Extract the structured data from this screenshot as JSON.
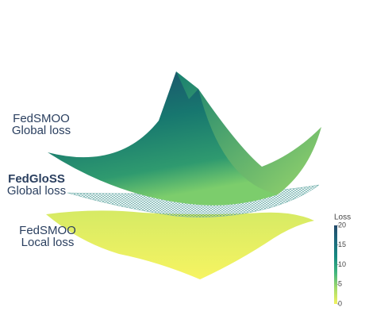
{
  "chart_data": {
    "type": "surface",
    "annotations": [
      {
        "lines": [
          "FedSMOO",
          "Global loss"
        ],
        "bold": false
      },
      {
        "lines": [
          "FedGloSS",
          "Global loss"
        ],
        "bold": true
      },
      {
        "lines": [
          "FedSMOO",
          "Local loss"
        ],
        "bold": false
      }
    ],
    "colorbar": {
      "title": "Loss",
      "lim": [
        0,
        20
      ],
      "ticks": [
        0,
        5,
        10,
        15,
        20
      ],
      "colors": [
        "#f1f25f",
        "#a5db6a",
        "#3fb57e",
        "#158a80",
        "#1d6a7d",
        "#234a6a"
      ]
    }
  }
}
